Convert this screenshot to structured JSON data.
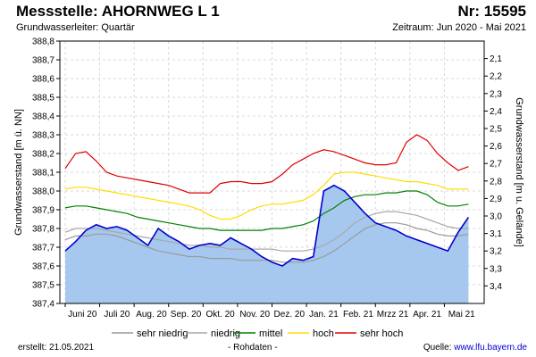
{
  "header": {
    "title": "Messstelle: AHORNWEG L 1",
    "number": "Nr: 15595",
    "aquifer": "Grundwasserleiter: Quartär",
    "period": "Zeitraum: Jun 2020 - Mai 2021"
  },
  "footer": {
    "created": "erstellt:  21.05.2021",
    "raw": "- Rohdaten -",
    "source_label": "Quelle:",
    "source_link": "www.lfu.bayern.de"
  },
  "chart_data": {
    "type": "area",
    "ylabel": "Grundwasserstand [m ü. NN]",
    "y2label": "Grundwasserstand [m u. Gelände]",
    "ylim": [
      387.4,
      388.8
    ],
    "y_ticks": [
      "388,8",
      "388,7",
      "388,6",
      "388,5",
      "388,4",
      "388,3",
      "388,2",
      "388,1",
      "388,0",
      "387,9",
      "387,8",
      "387,7",
      "387,6",
      "387,5",
      "387,4"
    ],
    "y2lim": [
      2.0,
      3.5
    ],
    "y2_ticks": [
      "2,1",
      "2,2",
      "2,3",
      "2,4",
      "2,5",
      "2,6",
      "2,7",
      "2,8",
      "2,9",
      "3,0",
      "3,1",
      "3,2",
      "3,3",
      "3,4"
    ],
    "x_ticks": [
      "Juni 20",
      "Juli 20",
      "Aug. 20",
      "Sep. 20",
      "Okt. 20",
      "Nov. 20",
      "Dez. 20",
      "Jan. 21",
      "Feb. 21",
      "Mrzz 21",
      "Apr. 21",
      "Mai 21"
    ],
    "grid": true,
    "legend_position": "bottom",
    "colors": {
      "measured_fill": "#a6c8ee",
      "measured_line": "#0000cc",
      "sehr_niedrig": "#9a9a9a",
      "niedrig": "#a8a8a8",
      "mittel": "#008000",
      "hoch": "#ffdd00",
      "sehr_hoch": "#dd0000"
    },
    "legend": [
      {
        "key": "sehr_niedrig",
        "label": "sehr niedrig"
      },
      {
        "key": "niedrig",
        "label": "niedrig"
      },
      {
        "key": "mittel",
        "label": "mittel"
      },
      {
        "key": "hoch",
        "label": "hoch"
      },
      {
        "key": "sehr_hoch",
        "label": "sehr hoch"
      }
    ],
    "x": [
      0,
      0.3,
      0.6,
      0.9,
      1.2,
      1.5,
      1.8,
      2.1,
      2.4,
      2.7,
      3.0,
      3.3,
      3.6,
      3.9,
      4.2,
      4.5,
      4.8,
      5.1,
      5.4,
      5.7,
      6.0,
      6.3,
      6.6,
      6.9,
      7.2,
      7.5,
      7.8,
      8.1,
      8.4,
      8.7,
      9.0,
      9.3,
      9.6,
      9.9,
      10.2,
      10.5,
      10.8,
      11.1,
      11.4,
      11.7
    ],
    "series": [
      {
        "key": "sehr_niedrig",
        "values": [
          387.74,
          387.76,
          387.76,
          387.77,
          387.77,
          387.76,
          387.74,
          387.72,
          387.7,
          387.68,
          387.67,
          387.66,
          387.65,
          387.65,
          387.64,
          387.64,
          387.64,
          387.63,
          387.63,
          387.63,
          387.63,
          387.62,
          387.62,
          387.62,
          387.63,
          387.65,
          387.68,
          387.72,
          387.76,
          387.8,
          387.82,
          387.83,
          387.83,
          387.82,
          387.8,
          387.79,
          387.77,
          387.76,
          387.76,
          387.77
        ]
      },
      {
        "key": "niedrig",
        "values": [
          387.78,
          387.8,
          387.8,
          387.8,
          387.79,
          387.78,
          387.77,
          387.76,
          387.75,
          387.74,
          387.73,
          387.72,
          387.71,
          387.71,
          387.7,
          387.7,
          387.69,
          387.69,
          387.69,
          387.69,
          387.69,
          387.68,
          387.68,
          387.68,
          387.69,
          387.71,
          387.74,
          387.78,
          387.83,
          387.86,
          387.88,
          387.89,
          387.89,
          387.88,
          387.87,
          387.85,
          387.83,
          387.81,
          387.8,
          387.8
        ]
      },
      {
        "key": "mittel",
        "values": [
          387.91,
          387.92,
          387.92,
          387.91,
          387.9,
          387.89,
          387.88,
          387.86,
          387.85,
          387.84,
          387.83,
          387.82,
          387.81,
          387.8,
          387.8,
          387.79,
          387.79,
          387.79,
          387.79,
          387.79,
          387.8,
          387.8,
          387.81,
          387.82,
          387.84,
          387.88,
          387.91,
          387.95,
          387.97,
          387.98,
          387.98,
          387.99,
          387.99,
          388.0,
          388.0,
          387.98,
          387.94,
          387.92,
          387.92,
          387.93
        ]
      },
      {
        "key": "hoch",
        "values": [
          388.01,
          388.02,
          388.02,
          388.01,
          388.0,
          387.99,
          387.98,
          387.97,
          387.96,
          387.95,
          387.94,
          387.93,
          387.92,
          387.9,
          387.87,
          387.85,
          387.85,
          387.87,
          387.9,
          387.92,
          387.93,
          387.93,
          387.94,
          387.95,
          387.98,
          388.03,
          388.09,
          388.1,
          388.1,
          388.09,
          388.08,
          388.07,
          388.06,
          388.05,
          388.05,
          388.04,
          388.03,
          388.01,
          388.01,
          388.01
        ]
      },
      {
        "key": "sehr_hoch",
        "values": [
          388.12,
          388.2,
          388.21,
          388.16,
          388.1,
          388.08,
          388.07,
          388.06,
          388.05,
          388.04,
          388.03,
          388.01,
          387.99,
          387.99,
          387.99,
          388.04,
          388.05,
          388.05,
          388.04,
          388.04,
          388.05,
          388.09,
          388.14,
          388.17,
          388.2,
          388.22,
          388.21,
          388.19,
          388.17,
          388.15,
          388.14,
          388.14,
          388.15,
          388.26,
          388.3,
          388.27,
          388.2,
          388.15,
          388.11,
          388.13
        ]
      },
      {
        "key": "measured",
        "values": [
          387.68,
          387.73,
          387.79,
          387.82,
          387.8,
          387.81,
          387.79,
          387.75,
          387.71,
          387.8,
          387.76,
          387.73,
          387.69,
          387.71,
          387.72,
          387.71,
          387.75,
          387.72,
          387.69,
          387.65,
          387.62,
          387.6,
          387.64,
          387.63,
          387.65,
          388.0,
          388.03,
          388.0,
          387.94,
          387.88,
          387.83,
          387.81,
          387.79,
          387.76,
          387.74,
          387.72,
          387.7,
          387.68,
          387.78,
          387.86
        ]
      }
    ]
  }
}
